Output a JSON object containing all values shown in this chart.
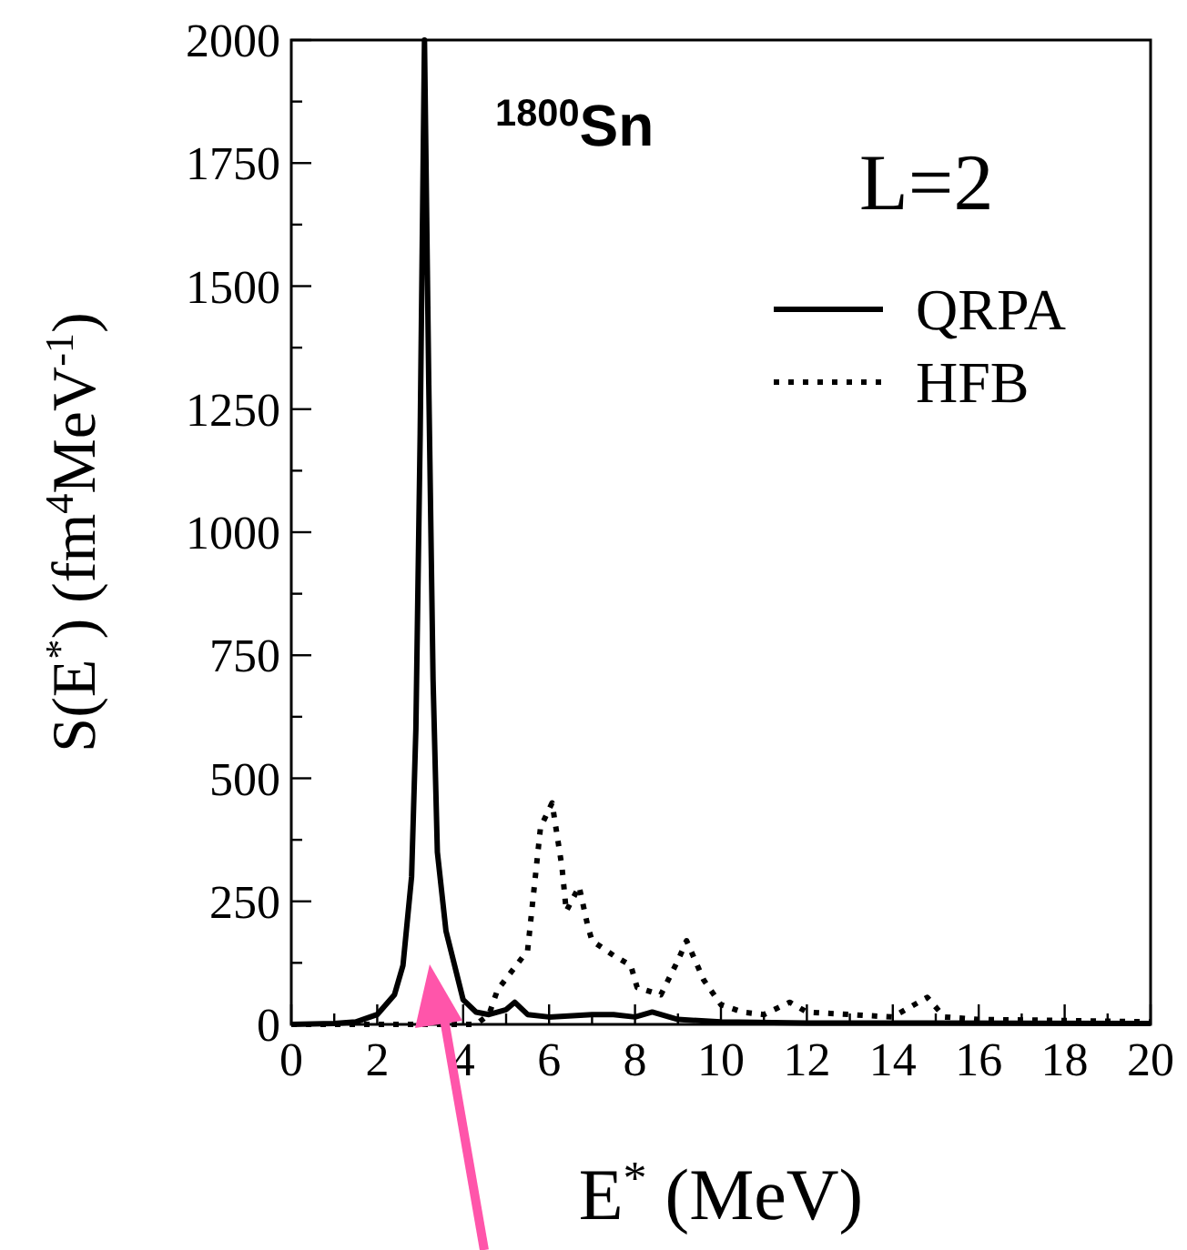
{
  "chart_data": {
    "type": "line",
    "xlabel": "E$^{*}$ (MeV)",
    "ylabel": "S(E$^{*}$) (fm$^{4}$MeV$^{-1}$)",
    "annotations": [
      "$^{1800}$Sn",
      "L=2"
    ],
    "xlim": [
      0,
      20
    ],
    "ylim": [
      0,
      2000
    ],
    "xticks": [
      0,
      {
        "value": 1,
        "label": null
      },
      2,
      {
        "value": 3,
        "label": null
      },
      4,
      {
        "value": 5,
        "label": null
      },
      6,
      {
        "value": 7,
        "label": null
      },
      8,
      {
        "value": 9,
        "label": null
      },
      10,
      {
        "value": 11,
        "label": null
      },
      12,
      {
        "value": 13,
        "label": null
      },
      14,
      {
        "value": 15,
        "label": null
      },
      16,
      {
        "value": 17,
        "label": null
      },
      18,
      {
        "value": 19,
        "label": null
      },
      20
    ],
    "yticks": [
      0,
      {
        "value": 125,
        "label": null
      },
      250,
      {
        "value": 375,
        "label": null
      },
      500,
      {
        "value": 625,
        "label": null
      },
      750,
      {
        "value": 875,
        "label": null
      },
      1000,
      {
        "value": 1125,
        "label": null
      },
      1250,
      {
        "value": 1375,
        "label": null
      },
      1500,
      {
        "value": 1625,
        "label": null
      },
      1750,
      {
        "value": 1875,
        "label": null
      },
      2000
    ],
    "grid": false,
    "legend": "top right",
    "marker": "none",
    "series": [
      {
        "name": "QRPA",
        "color": "#000000",
        "line_style": "solid",
        "x": [
          0,
          1,
          1.5,
          2,
          2.4,
          2.6,
          2.8,
          2.9,
          3.0,
          3.1,
          3.2,
          3.3,
          3.4,
          3.6,
          3.8,
          4.0,
          4.3,
          4.6,
          5.0,
          5.2,
          5.5,
          6,
          7,
          7.5,
          8,
          8.4,
          9,
          10,
          12,
          20
        ],
        "values": [
          0,
          2,
          5,
          20,
          60,
          120,
          300,
          600,
          1200,
          2000,
          1300,
          700,
          350,
          190,
          120,
          50,
          25,
          20,
          30,
          45,
          20,
          15,
          20,
          20,
          15,
          25,
          10,
          5,
          3,
          2
        ]
      },
      {
        "name": "HFB",
        "color": "#000000",
        "line_style": "dotted",
        "x": [
          0,
          4.3,
          4.6,
          4.8,
          5.5,
          5.8,
          6.07,
          6.3,
          6.4,
          6.7,
          6.9,
          7.0,
          7.5,
          7.9,
          8.05,
          8.6,
          9.0,
          9.2,
          9.6,
          10.0,
          10.5,
          11,
          11.6,
          12,
          13,
          14,
          14.8,
          15.2,
          16,
          18,
          20
        ],
        "values": [
          0,
          0,
          20,
          70,
          150,
          400,
          450,
          320,
          230,
          280,
          200,
          170,
          140,
          120,
          75,
          60,
          130,
          170,
          90,
          40,
          25,
          20,
          45,
          25,
          20,
          15,
          55,
          15,
          10,
          8,
          5
        ]
      }
    ]
  }
}
